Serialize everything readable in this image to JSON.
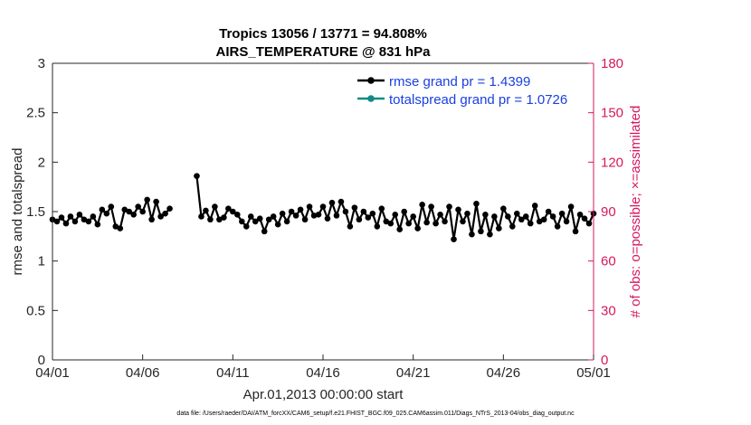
{
  "chart_data": {
    "type": "line",
    "title_line1": "Tropics 13056 / 13771 = 94.808%",
    "title_line2": "AIRS_TEMPERATURE @ 831 hPa",
    "xlabel": "Apr.01,2013 00:00:00 start",
    "ylabel_left": "rmse and totalspread",
    "ylabel_right": "# of obs: o=possible; ×=assimilated",
    "xlim": [
      0,
      30
    ],
    "ylim_left": [
      0,
      3
    ],
    "ylim_right": [
      0,
      180
    ],
    "x_tick_values": [
      0,
      5,
      10,
      15,
      20,
      25,
      30
    ],
    "x_tick_labels": [
      "04/01",
      "04/06",
      "04/11",
      "04/16",
      "04/21",
      "04/26",
      "05/01"
    ],
    "y_left_ticks": [
      "0",
      "0.5",
      "1",
      "1.5",
      "2",
      "2.5",
      "3"
    ],
    "y_right_ticks": [
      "0",
      "30",
      "60",
      "90",
      "120",
      "150",
      "180"
    ],
    "legend": [
      {
        "label": "rmse grand pr = 1.4399",
        "color": "#000000"
      },
      {
        "label": "totalspread grand pr = 1.0726",
        "color": "#138a88"
      }
    ],
    "footnote": "data file: /Users/raeder/DAI/ATM_forcXX/CAM6_setup/f.e21.FHIST_BGC.f09_025.CAM6assim.011/Diags_NTrS_2013-04/obs_diag_output.nc",
    "colors": {
      "rmse": "#000000",
      "spread": "#138a88",
      "obs": "#d6185e"
    },
    "series": [
      {
        "name": "rmse",
        "x": [
          0.0,
          0.25,
          0.5,
          0.75,
          1.0,
          1.25,
          1.5,
          1.75,
          2.0,
          2.25,
          2.5,
          2.75,
          3.0,
          3.25,
          3.5,
          3.75,
          4.0,
          4.25,
          4.5,
          4.75,
          5.0,
          5.25,
          5.5,
          5.75,
          6.0,
          6.25,
          6.5,
          6.75,
          7.0,
          7.25,
          7.5,
          7.75,
          8.0,
          8.25,
          8.5,
          8.75,
          9.0,
          9.25,
          9.5,
          9.75,
          10.0,
          10.25,
          10.5,
          10.75,
          11.0,
          11.25,
          11.5,
          11.75,
          12.0,
          12.25,
          12.5,
          12.75,
          13.0,
          13.25,
          13.5,
          13.75,
          14.0,
          14.25,
          14.5,
          14.75,
          15.0,
          15.25,
          15.5,
          15.75,
          16.0,
          16.25,
          16.5,
          16.75,
          17.0,
          17.25,
          17.5,
          17.75,
          18.0,
          18.25,
          18.5,
          18.75,
          19.0,
          19.25,
          19.5,
          19.75,
          20.0,
          20.25,
          20.5,
          20.75,
          21.0,
          21.25,
          21.5,
          21.75,
          22.0,
          22.25,
          22.5,
          22.75,
          23.0,
          23.25,
          23.5,
          23.75,
          24.0,
          24.25,
          24.5,
          24.75,
          25.0,
          25.25,
          25.5,
          25.75,
          26.0,
          26.25,
          26.5,
          26.75,
          27.0,
          27.25,
          27.5,
          27.75,
          28.0,
          28.25,
          28.5,
          28.75,
          29.0,
          29.25,
          29.5,
          29.75,
          30.0
        ],
        "values": [
          1.42,
          1.4,
          1.44,
          1.38,
          1.45,
          1.4,
          1.47,
          1.42,
          1.4,
          1.45,
          1.37,
          1.52,
          1.48,
          1.55,
          1.35,
          1.33,
          1.52,
          1.5,
          1.47,
          1.55,
          1.5,
          1.62,
          1.42,
          1.6,
          1.45,
          1.48,
          1.53,
          null,
          null,
          null,
          null,
          null,
          1.86,
          1.45,
          1.51,
          1.42,
          1.55,
          1.42,
          1.44,
          1.53,
          1.5,
          1.47,
          1.4,
          1.35,
          1.45,
          1.4,
          1.43,
          1.3,
          1.42,
          1.45,
          1.37,
          1.48,
          1.4,
          1.5,
          1.46,
          1.52,
          1.42,
          1.55,
          1.46,
          1.47,
          1.55,
          1.43,
          1.59,
          1.46,
          1.6,
          1.5,
          1.35,
          1.54,
          1.42,
          1.5,
          1.44,
          1.48,
          1.35,
          1.53,
          1.4,
          1.38,
          1.47,
          1.32,
          1.5,
          1.38,
          1.45,
          1.33,
          1.57,
          1.39,
          1.55,
          1.38,
          1.47,
          1.4,
          1.55,
          1.22,
          1.52,
          1.4,
          1.48,
          1.27,
          1.58,
          1.3,
          1.47,
          1.27,
          1.45,
          1.33,
          1.53,
          1.45,
          1.35,
          1.48,
          1.42,
          1.45,
          1.38,
          1.56,
          1.4,
          1.42,
          1.5,
          1.45,
          1.35,
          1.48,
          1.4,
          1.55,
          1.3,
          1.47,
          1.43,
          1.38,
          1.48
        ]
      }
    ]
  }
}
